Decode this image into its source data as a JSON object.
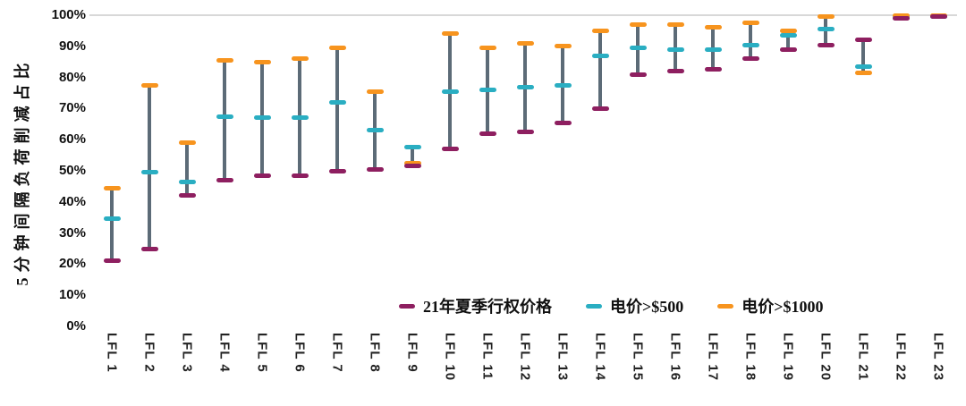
{
  "chart_data": {
    "type": "range-bar",
    "title": "",
    "xlabel": "",
    "ylabel": "5分钟间隔负荷削减占比",
    "ylim": [
      0,
      100
    ],
    "ytick_step": 10,
    "ytick_suffix": "%",
    "grid": "top-line-only",
    "gridline": {
      "at": 100,
      "color": "#D8D8D8"
    },
    "connector_color": "#5C6B77",
    "legend_position": "inside-bottom",
    "categories": [
      "LFL 1",
      "LFL 2",
      "LFL 3",
      "LFL 4",
      "LFL 5",
      "LFL 6",
      "LFL 7",
      "LFL 8",
      "LFL 9",
      "LFL 10",
      "LFL 11",
      "LFL 12",
      "LFL 13",
      "LFL 14",
      "LFL 15",
      "LFL 16",
      "LFL 17",
      "LFL 18",
      "LFL 19",
      "LFL 20",
      "LFL 21",
      "LFL 22",
      "LFL 23"
    ],
    "series": [
      {
        "name": "21年夏季行权价格",
        "color": "#8E1F60",
        "values": [
          21,
          25,
          42,
          47,
          48.5,
          48.5,
          50,
          50.5,
          51.5,
          57,
          62,
          62.5,
          65.5,
          70,
          81,
          82,
          82.5,
          86,
          89,
          90.5,
          92,
          99,
          99.5
        ]
      },
      {
        "name": "电价>$500",
        "color": "#2AAEC2",
        "values": [
          34.5,
          49.5,
          46.5,
          67.5,
          67,
          67,
          72,
          63,
          57.5,
          75.5,
          76,
          77,
          77.5,
          87,
          89.5,
          89,
          89,
          90.5,
          93.5,
          95.5,
          83.5,
          99.5,
          99.5
        ]
      },
      {
        "name": "电价>$1000",
        "color": "#F7941E",
        "values": [
          44.5,
          77.5,
          59,
          85.5,
          85,
          86,
          89.5,
          75.5,
          52.5,
          94,
          89.5,
          91,
          90,
          95,
          97,
          97,
          96,
          97.5,
          95,
          99.5,
          81.5,
          100,
          100
        ]
      }
    ]
  }
}
